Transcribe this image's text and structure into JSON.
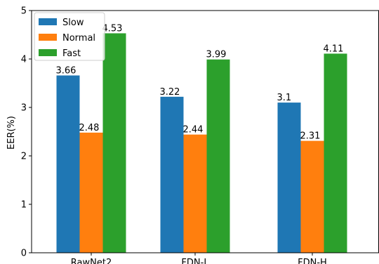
{
  "chart_data": {
    "type": "bar",
    "title": "",
    "xlabel": "",
    "ylabel": "EER(%)",
    "ylim": [
      0,
      5
    ],
    "yticks": [
      "0",
      "1",
      "2",
      "3",
      "4",
      "5"
    ],
    "categories": [
      "RawNet2",
      "FDN-L",
      "FDN-H"
    ],
    "series": [
      {
        "name": "Slow",
        "color": "#1f77b4",
        "values": [
          3.66,
          3.22,
          3.1
        ],
        "labels": [
          "3.66",
          "3.22",
          "3.1"
        ]
      },
      {
        "name": "Normal",
        "color": "#ff7f0e",
        "values": [
          2.48,
          2.44,
          2.31
        ],
        "labels": [
          "2.48",
          "2.44",
          "2.31"
        ]
      },
      {
        "name": "Fast",
        "color": "#2ca02c",
        "values": [
          4.53,
          3.99,
          4.11
        ],
        "labels": [
          "4.53",
          "3.99",
          "4.11"
        ]
      }
    ],
    "legend": "top-left",
    "grid": false
  }
}
